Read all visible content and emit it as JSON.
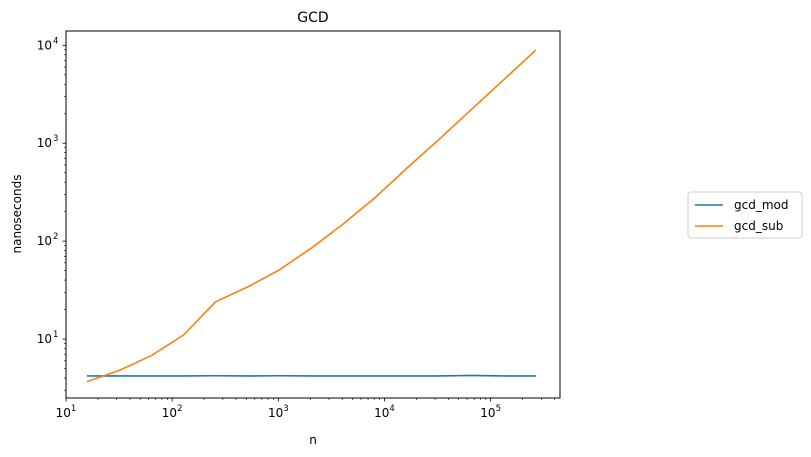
{
  "chart_data": {
    "type": "line",
    "title": "GCD",
    "xlabel": "n",
    "ylabel": "nanoseconds",
    "xscale": "log",
    "yscale": "log",
    "xlim": [
      10,
      450000
    ],
    "ylim": [
      2.5,
      14000
    ],
    "x_ticks": [
      {
        "value": 10,
        "base": "10",
        "exp": "1"
      },
      {
        "value": 100,
        "base": "10",
        "exp": "2"
      },
      {
        "value": 1000,
        "base": "10",
        "exp": "3"
      },
      {
        "value": 10000,
        "base": "10",
        "exp": "4"
      },
      {
        "value": 100000,
        "base": "10",
        "exp": "5"
      }
    ],
    "y_ticks": [
      {
        "value": 10,
        "base": "10",
        "exp": "1"
      },
      {
        "value": 100,
        "base": "10",
        "exp": "2"
      },
      {
        "value": 1000,
        "base": "10",
        "exp": "3"
      },
      {
        "value": 10000,
        "base": "10",
        "exp": "4"
      }
    ],
    "legend": "center-right outside",
    "grid": false,
    "series": [
      {
        "name": "gcd_mod",
        "color": "#1f77b4",
        "x": [
          16,
          32,
          64,
          128,
          256,
          512,
          1024,
          2048,
          4096,
          8192,
          16384,
          32768,
          65536,
          131072,
          262144
        ],
        "y": [
          4.2,
          4.2,
          4.2,
          4.2,
          4.22,
          4.2,
          4.22,
          4.2,
          4.2,
          4.2,
          4.2,
          4.2,
          4.25,
          4.2,
          4.2
        ]
      },
      {
        "name": "gcd_sub",
        "color": "#ff7f0e",
        "x": [
          16,
          32,
          64,
          128,
          256,
          512,
          1024,
          2048,
          4096,
          8192,
          16384,
          32768,
          65536,
          131072,
          262144
        ],
        "y": [
          3.7,
          4.8,
          6.8,
          11,
          24,
          34,
          51,
          85,
          150,
          280,
          560,
          1100,
          2200,
          4400,
          8800
        ]
      }
    ]
  }
}
